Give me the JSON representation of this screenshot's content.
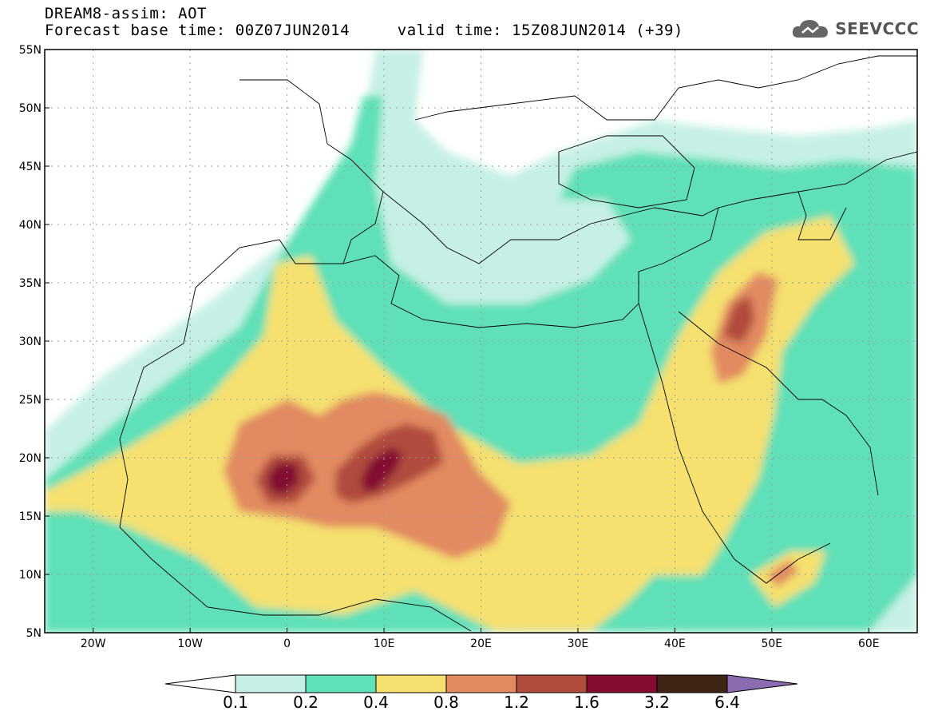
{
  "header": {
    "title_line1": "DREAM8-assim: AOT",
    "base_time_label": "Forecast base time: 00Z07JUN2014",
    "valid_time_label": "valid time: 15Z08JUN2014 (+39)",
    "brand": "SEEVCCC",
    "brand_icon": "cloud-logo-icon"
  },
  "map": {
    "variable": "AOT",
    "lon_range": [
      -25,
      65
    ],
    "lat_range": [
      5,
      55
    ],
    "lat_ticks": [
      "55N",
      "50N",
      "45N",
      "40N",
      "35N",
      "30N",
      "25N",
      "20N",
      "15N",
      "10N",
      "5N"
    ],
    "lon_ticks": [
      "20W",
      "10W",
      "0",
      "10E",
      "20E",
      "30E",
      "40E",
      "50E",
      "60E"
    ],
    "grid": "dotted"
  },
  "legend": {
    "levels": [
      "0.1",
      "0.2",
      "0.4",
      "0.8",
      "1.2",
      "1.6",
      "3.2",
      "6.4"
    ],
    "colors": [
      "#ffffff",
      "#c6f0e6",
      "#5ee0b8",
      "#f5e070",
      "#e28a60",
      "#b04c3c",
      "#840c30",
      "#3e2414",
      "#8c6cb0"
    ]
  }
}
